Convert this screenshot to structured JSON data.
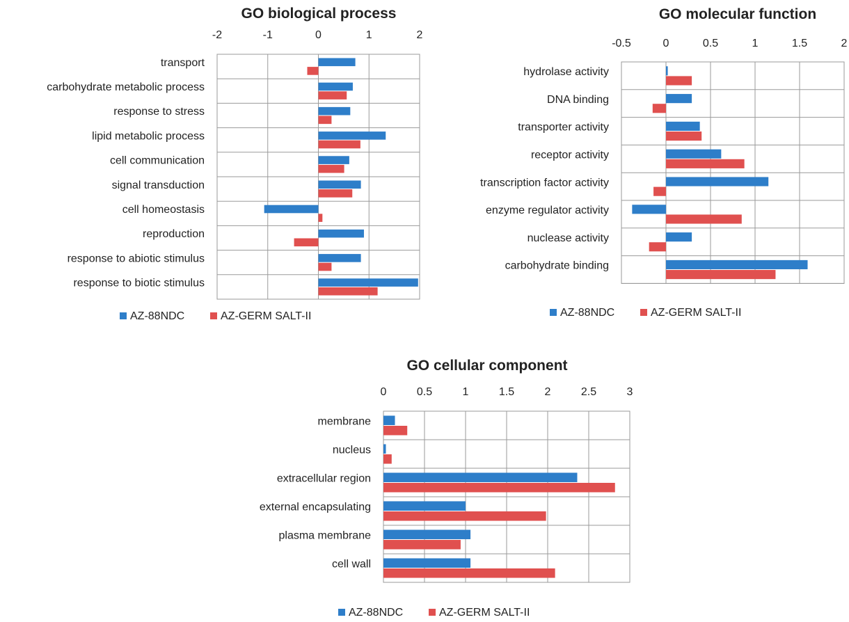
{
  "colors": {
    "series1": "#2e7ec9",
    "series2": "#e0504f",
    "grid": "#9a9a9a"
  },
  "chart_data": [
    {
      "type": "bar",
      "orientation": "horizontal",
      "title": "GO biological process",
      "xlim": [
        -2,
        2
      ],
      "ticks": [
        "-2",
        "-1",
        "0",
        "1",
        "2"
      ],
      "tick_values": [
        -2,
        -1,
        0,
        1,
        2
      ],
      "grid": true,
      "legend_position": "bottom",
      "categories": [
        "transport",
        "carbohydrate metabolic process",
        "response to stress",
        "lipid metabolic process",
        "cell communication",
        "signal transduction",
        "cell homeostasis",
        "reproduction",
        "response to abiotic stimulus",
        "response to biotic stimulus"
      ],
      "series": [
        {
          "name": "AZ-88NDC",
          "values": [
            0.73,
            0.68,
            0.63,
            1.33,
            0.61,
            0.84,
            -1.07,
            0.9,
            0.84,
            1.97
          ]
        },
        {
          "name": "AZ-GERM SALT-II",
          "values": [
            -0.22,
            0.56,
            0.26,
            0.83,
            0.51,
            0.67,
            0.08,
            -0.48,
            0.26,
            1.17
          ]
        }
      ]
    },
    {
      "type": "bar",
      "orientation": "horizontal",
      "title": "GO molecular function",
      "xlim": [
        -0.5,
        2
      ],
      "ticks": [
        "-0.5",
        "0",
        "0.5",
        "1",
        "1.5",
        "2"
      ],
      "tick_values": [
        -0.5,
        0,
        0.5,
        1,
        1.5,
        2
      ],
      "grid": true,
      "legend_position": "bottom",
      "categories": [
        "hydrolase activity",
        "DNA binding",
        "transporter activity",
        "receptor activity",
        "transcription factor activity",
        "enzyme regulator activity",
        "nuclease activity",
        "carbohydrate binding"
      ],
      "series": [
        {
          "name": "AZ-88NDC",
          "values": [
            0.02,
            0.29,
            0.38,
            0.62,
            1.15,
            -0.38,
            0.29,
            1.59
          ]
        },
        {
          "name": "AZ-GERM SALT-II",
          "values": [
            0.29,
            -0.15,
            0.4,
            0.88,
            -0.14,
            0.85,
            -0.19,
            1.23
          ]
        }
      ]
    },
    {
      "type": "bar",
      "orientation": "horizontal",
      "title": "GO cellular component",
      "xlim": [
        0,
        3
      ],
      "ticks": [
        "0",
        "0.5",
        "1",
        "1.5",
        "2",
        "2.5",
        "3"
      ],
      "tick_values": [
        0,
        0.5,
        1,
        1.5,
        2,
        2.5,
        3
      ],
      "grid": true,
      "legend_position": "bottom",
      "categories": [
        "membrane",
        "nucleus",
        "extracellular region",
        "external encapsulating",
        "plasma membrane",
        "cell wall"
      ],
      "series": [
        {
          "name": "AZ-88NDC",
          "values": [
            0.14,
            0.03,
            2.36,
            1.0,
            1.06,
            1.06
          ]
        },
        {
          "name": "AZ-GERM SALT-II",
          "values": [
            0.29,
            0.1,
            2.82,
            1.98,
            0.94,
            2.09
          ]
        }
      ]
    }
  ]
}
